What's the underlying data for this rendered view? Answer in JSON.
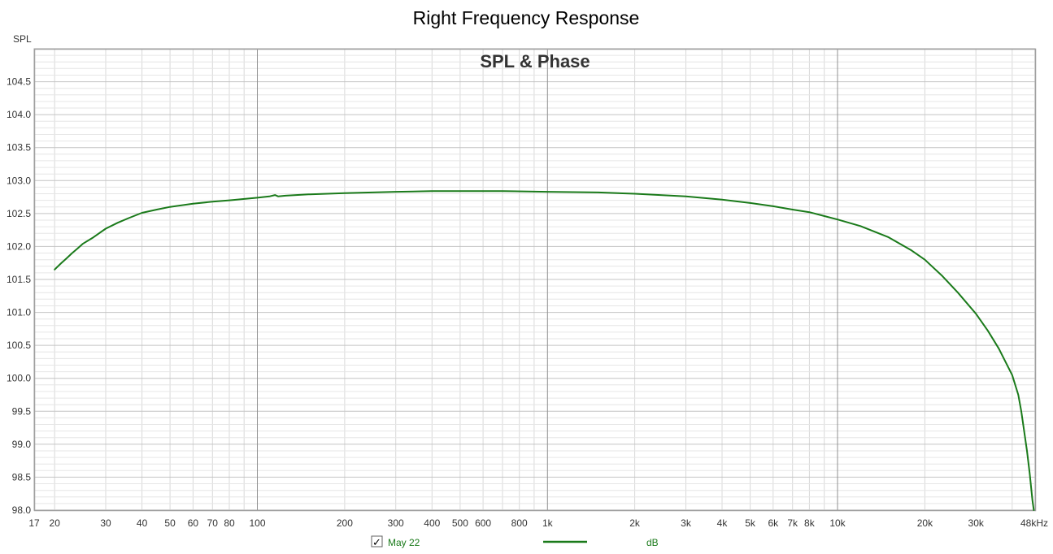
{
  "title": "Right Frequency Response",
  "colors": {
    "curve": "#1a7a1a",
    "legend_text": "#1a7a1a",
    "grid_major": "#909090",
    "grid_minor": "#d8d8d8",
    "border": "#a0a0a0"
  },
  "legend": {
    "checkbox_mark": "✓",
    "series_label": "May 22",
    "unit_label": "dB",
    "checked": true
  },
  "chart_data": {
    "type": "line",
    "title": "SPL & Phase",
    "ylabel": "SPL",
    "xlabel": "",
    "xscale": "log",
    "xlim": [
      17,
      48000
    ],
    "ylim": [
      98.0,
      105.0
    ],
    "grid": true,
    "x_tick_labels": [
      {
        "value": 17,
        "label": "17"
      },
      {
        "value": 20,
        "label": "20"
      },
      {
        "value": 30,
        "label": "30"
      },
      {
        "value": 40,
        "label": "40"
      },
      {
        "value": 50,
        "label": "50"
      },
      {
        "value": 60,
        "label": "60"
      },
      {
        "value": 70,
        "label": "70"
      },
      {
        "value": 80,
        "label": "80"
      },
      {
        "value": 100,
        "label": "100"
      },
      {
        "value": 200,
        "label": "200"
      },
      {
        "value": 300,
        "label": "300"
      },
      {
        "value": 400,
        "label": "400"
      },
      {
        "value": 500,
        "label": "500"
      },
      {
        "value": 600,
        "label": "600"
      },
      {
        "value": 800,
        "label": "800"
      },
      {
        "value": 1000,
        "label": "1k"
      },
      {
        "value": 2000,
        "label": "2k"
      },
      {
        "value": 3000,
        "label": "3k"
      },
      {
        "value": 4000,
        "label": "4k"
      },
      {
        "value": 5000,
        "label": "5k"
      },
      {
        "value": 6000,
        "label": "6k"
      },
      {
        "value": 7000,
        "label": "7k"
      },
      {
        "value": 8000,
        "label": "8k"
      },
      {
        "value": 10000,
        "label": "10k"
      },
      {
        "value": 20000,
        "label": "20k"
      },
      {
        "value": 30000,
        "label": "30k"
      },
      {
        "value": 48000,
        "label": "48kHz"
      }
    ],
    "y_tick_labels": [
      "98.0",
      "98.5",
      "99.0",
      "99.5",
      "100.0",
      "100.5",
      "101.0",
      "101.5",
      "102.0",
      "102.5",
      "103.0",
      "103.5",
      "104.0",
      "104.5"
    ],
    "series": [
      {
        "name": "May 22",
        "x": [
          20,
          21,
          22,
          23,
          24,
          25,
          27,
          30,
          33,
          36,
          40,
          45,
          50,
          60,
          70,
          80,
          100,
          110,
          115,
          118,
          125,
          150,
          200,
          300,
          400,
          500,
          700,
          1000,
          1500,
          2000,
          3000,
          4000,
          5000,
          6000,
          7000,
          8000,
          10000,
          12000,
          15000,
          18000,
          20000,
          23000,
          26000,
          30000,
          33000,
          36000,
          40000,
          42000,
          43000,
          44000,
          45000,
          46000,
          47000,
          47500
        ],
        "y": [
          101.65,
          101.74,
          101.82,
          101.9,
          101.97,
          102.04,
          102.13,
          102.27,
          102.36,
          102.43,
          102.51,
          102.56,
          102.6,
          102.65,
          102.68,
          102.7,
          102.74,
          102.76,
          102.78,
          102.76,
          102.77,
          102.79,
          102.81,
          102.83,
          102.84,
          102.84,
          102.84,
          102.83,
          102.82,
          102.8,
          102.76,
          102.71,
          102.66,
          102.61,
          102.56,
          102.52,
          102.41,
          102.31,
          102.14,
          101.94,
          101.8,
          101.55,
          101.3,
          100.98,
          100.72,
          100.45,
          100.05,
          99.75,
          99.5,
          99.2,
          98.9,
          98.55,
          98.15,
          98.0
        ]
      }
    ]
  }
}
